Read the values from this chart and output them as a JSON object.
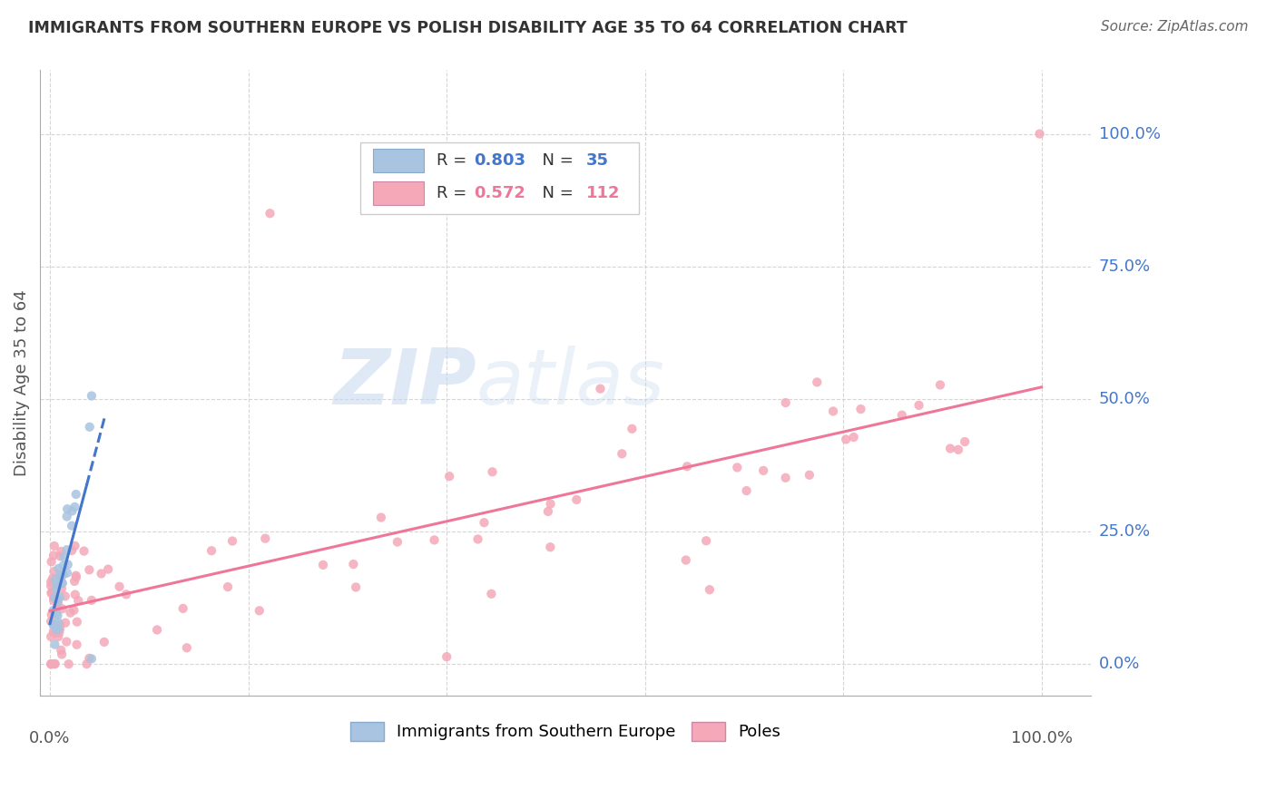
{
  "title": "IMMIGRANTS FROM SOUTHERN EUROPE VS POLISH DISABILITY AGE 35 TO 64 CORRELATION CHART",
  "source": "Source: ZipAtlas.com",
  "ylabel": "Disability Age 35 to 64",
  "ytick_labels": [
    "0.0%",
    "25.0%",
    "50.0%",
    "75.0%",
    "100.0%"
  ],
  "blue_R": 0.803,
  "blue_N": 35,
  "pink_R": 0.572,
  "pink_N": 112,
  "blue_color": "#a8c4e0",
  "pink_color": "#f4a8b8",
  "blue_line_color": "#4477cc",
  "pink_line_color": "#ee7799",
  "watermark_zip": "ZIP",
  "watermark_atlas": "atlas",
  "legend_blue_label": "Immigrants from Southern Europe",
  "legend_pink_label": "Poles"
}
